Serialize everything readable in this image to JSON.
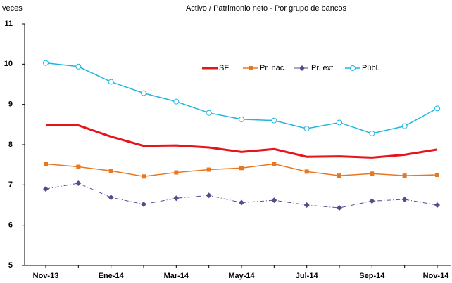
{
  "chart_data": {
    "type": "line",
    "title": "Activo / Patrimonio neto - Por grupo de bancos",
    "y_label": "veces",
    "categories": [
      "Nov-13",
      null,
      "Ene-14",
      null,
      "Mar-14",
      null,
      "May-14",
      null,
      "Jul-14",
      null,
      "Sep-14",
      null,
      "Nov-14"
    ],
    "ylim": [
      5,
      11
    ],
    "yticks": [
      5,
      6,
      7,
      8,
      9,
      10,
      11
    ],
    "grid": false,
    "legend": "top-right",
    "series": [
      {
        "name": "SF",
        "color": "#e8141b",
        "width": 3,
        "marker": "none",
        "dash": "none",
        "values": [
          8.49,
          8.48,
          8.2,
          7.97,
          7.98,
          7.93,
          7.82,
          7.89,
          7.7,
          7.71,
          7.68,
          7.75,
          7.88
        ]
      },
      {
        "name": "Pr. nac.",
        "color": "#e87722",
        "width": 1.5,
        "marker": "square",
        "dash": "none",
        "values": [
          7.52,
          7.45,
          7.35,
          7.21,
          7.31,
          7.38,
          7.42,
          7.52,
          7.33,
          7.23,
          7.28,
          7.23,
          7.25
        ]
      },
      {
        "name": "Pr. ext.",
        "color": "#5b4a8b",
        "width": 1,
        "marker": "diamond",
        "dash": "6 3 1 3",
        "values": [
          6.9,
          7.04,
          6.69,
          6.52,
          6.67,
          6.74,
          6.56,
          6.62,
          6.5,
          6.43,
          6.6,
          6.64,
          6.5
        ]
      },
      {
        "name": "Públ.",
        "color": "#1fb5e0",
        "width": 1.5,
        "marker": "circle",
        "dash": "none",
        "values": [
          10.03,
          9.94,
          9.56,
          9.28,
          9.07,
          8.79,
          8.63,
          8.6,
          8.4,
          8.55,
          8.28,
          8.46,
          8.9
        ]
      }
    ]
  }
}
